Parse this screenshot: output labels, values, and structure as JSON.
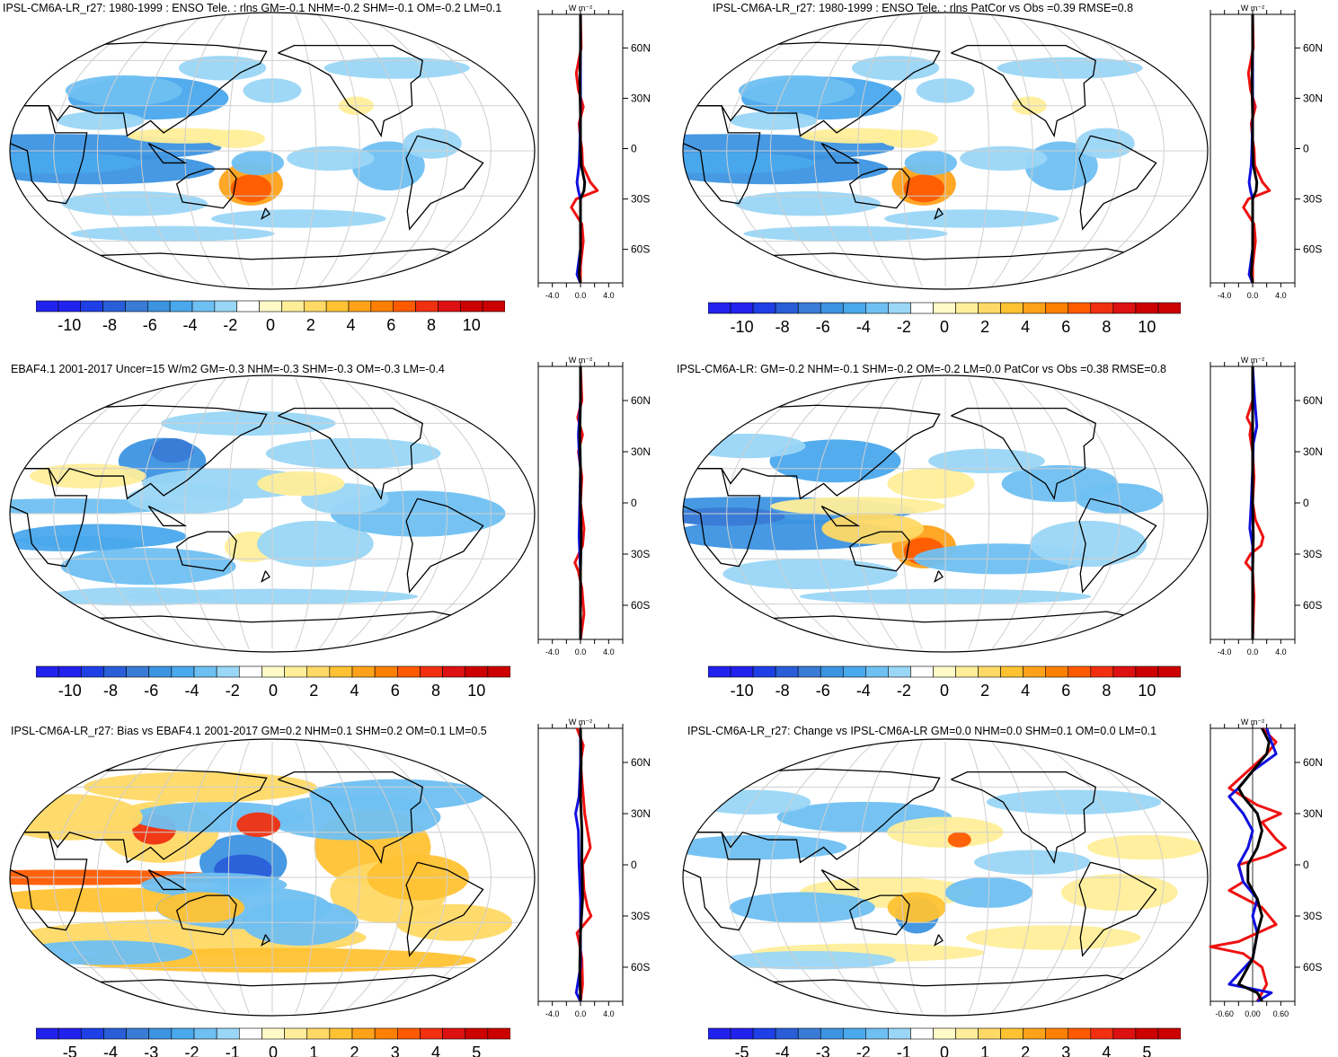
{
  "colors": {
    "ocean": "#ffffff",
    "grid": "#cfcfcf",
    "coast": "#000000",
    "blue_line": "#1010e0",
    "red_line": "#ee1111",
    "black_line": "#000000"
  },
  "colorbar_colors": [
    "#2222ee",
    "#1f3fe6",
    "#2a5ed8",
    "#3a7bd6",
    "#3c93e0",
    "#4aa8ec",
    "#6fc0f2",
    "#9ad6f6",
    "#ffffff",
    "#fffac8",
    "#ffee99",
    "#ffd966",
    "#ffc233",
    "#ffa21a",
    "#ff8000",
    "#ff5a00",
    "#f03010",
    "#dd1111",
    "#cc0000"
  ],
  "zonal_axis_unit": "W m⁻²",
  "lat_ticks": [
    "60N",
    "30N",
    "0",
    "30S",
    "60S"
  ],
  "panels": [
    {
      "title": "IPSL-CM6A-LR_r27: 1980-1999 : ENSO Tele. : rlns GM=-0.1 NHM=-0.2 SHM=-0.1 OM=-0.2 LM=0.1",
      "colorbar_labels": [
        "-10",
        "-8",
        "-6",
        "-4",
        "-2",
        "0",
        "2",
        "4",
        "6",
        "8",
        "10"
      ],
      "zonal_xticks": [
        "-4.0",
        "0.0",
        "4.0"
      ]
    },
    {
      "title": "IPSL-CM6A-LR_r27: 1980-1999 : ENSO Tele. : rlns PatCor vs Obs =0.39 RMSE=0.8",
      "colorbar_labels": [
        "-10",
        "-8",
        "-6",
        "-4",
        "-2",
        "0",
        "2",
        "4",
        "6",
        "8",
        "10"
      ],
      "zonal_xticks": [
        "-4.0",
        "0.0",
        "4.0"
      ]
    },
    {
      "title": "EBAF4.1 2001-2017 Uncer=15 W/m2 GM=-0.3 NHM=-0.3 SHM=-0.3 OM=-0.3 LM=-0.4",
      "colorbar_labels": [
        "-10",
        "-8",
        "-6",
        "-4",
        "-2",
        "0",
        "2",
        "4",
        "6",
        "8",
        "10"
      ],
      "zonal_xticks": [
        "-4.0",
        "0.0",
        "4.0"
      ]
    },
    {
      "title": "IPSL-CM6A-LR: GM=-0.2 NHM=-0.1 SHM=-0.2 OM=-0.2 LM=0.0 PatCor vs Obs =0.38 RMSE=0.8",
      "colorbar_labels": [
        "-10",
        "-8",
        "-6",
        "-4",
        "-2",
        "0",
        "2",
        "4",
        "6",
        "8",
        "10"
      ],
      "zonal_xticks": [
        "-4.0",
        "0.0",
        "4.0"
      ]
    },
    {
      "title": "IPSL-CM6A-LR_r27: Bias vs EBAF4.1 2001-2017 GM=0.2 NHM=0.1 SHM=0.2 OM=0.1 LM=0.5",
      "colorbar_labels": [
        "-5",
        "-4",
        "-3",
        "-2",
        "-1",
        "0",
        "1",
        "2",
        "3",
        "4",
        "5"
      ],
      "zonal_xticks": [
        "-4.0",
        "0.0",
        "4.0"
      ]
    },
    {
      "title": "IPSL-CM6A-LR_r27: Change vs IPSL-CM6A-LR GM=0.0 NHM=0.0 SHM=0.1 OM=0.0 LM=0.1",
      "colorbar_labels": [
        "-5",
        "-4",
        "-3",
        "-2",
        "-1",
        "0",
        "1",
        "2",
        "3",
        "4",
        "5"
      ],
      "zonal_xticks": [
        "-0.60",
        "0.00",
        "0.60"
      ]
    }
  ],
  "chart_data": [
    {
      "type": "heatmap",
      "title": "IPSL-CM6A-LR_r27: 1980-1999 : ENSO Tele. : rlns GM=-0.1 NHM=-0.2 SHM=-0.1 OM=-0.2 LM=0.1",
      "colorbar_range": [
        -10,
        10
      ]
    },
    {
      "type": "line",
      "title": "Zonal mean panel 1",
      "xlim": [
        -6,
        6
      ],
      "ylim": [
        -80,
        80
      ],
      "series": [
        {
          "name": "red",
          "lat": [
            80,
            60,
            45,
            35,
            25,
            15,
            5,
            0,
            -10,
            -20,
            -25,
            -30,
            -35,
            -45,
            -55,
            -70,
            -80
          ],
          "values": [
            0,
            0.1,
            -0.6,
            -0.3,
            0.4,
            -0.2,
            0,
            0.2,
            0.3,
            1.4,
            2.4,
            -0.6,
            -1.3,
            0.2,
            0.4,
            0,
            0
          ]
        },
        {
          "name": "blue",
          "lat": [
            80,
            60,
            40,
            20,
            0,
            -10,
            -20,
            -25,
            -30,
            -40,
            -60,
            -75,
            -80
          ],
          "values": [
            0,
            0,
            0,
            0,
            -0.1,
            -0.2,
            -0.5,
            -0.3,
            0,
            0,
            0,
            -0.5,
            0
          ]
        },
        {
          "name": "black",
          "lat": [
            80,
            60,
            40,
            20,
            0,
            -10,
            -20,
            -25,
            -30,
            -40,
            -60,
            -75,
            -80
          ],
          "values": [
            0,
            0,
            -0.1,
            0,
            0,
            0.1,
            0.6,
            0.5,
            0,
            0,
            0,
            -0.2,
            0
          ]
        }
      ]
    },
    {
      "type": "heatmap",
      "title": "IPSL-CM6A-LR_r27: 1980-1999 : ENSO Tele. : rlns PatCor vs Obs =0.39 RMSE=0.8",
      "colorbar_range": [
        -10,
        10
      ]
    },
    {
      "type": "line",
      "title": "Zonal mean panel 2",
      "xlim": [
        -6,
        6
      ],
      "ylim": [
        -80,
        80
      ],
      "series": [
        {
          "name": "red",
          "lat": [
            80,
            60,
            45,
            35,
            25,
            15,
            5,
            0,
            -10,
            -20,
            -25,
            -30,
            -35,
            -45,
            -55,
            -70,
            -80
          ],
          "values": [
            0,
            0.1,
            -0.6,
            -0.3,
            0.4,
            -0.2,
            0,
            0.2,
            0.3,
            1.4,
            2.4,
            -0.6,
            -1.3,
            0.2,
            0.4,
            0,
            0
          ]
        },
        {
          "name": "blue",
          "lat": [
            80,
            60,
            40,
            20,
            0,
            -10,
            -20,
            -25,
            -30,
            -40,
            -60,
            -75,
            -80
          ],
          "values": [
            0,
            0,
            0,
            0,
            -0.1,
            -0.2,
            -0.5,
            -0.3,
            0,
            0,
            0,
            -0.5,
            0
          ]
        },
        {
          "name": "black",
          "lat": [
            80,
            60,
            40,
            20,
            0,
            -10,
            -20,
            -25,
            -30,
            -40,
            -60,
            -75,
            -80
          ],
          "values": [
            0,
            0,
            -0.1,
            0,
            0,
            0.1,
            0.6,
            0.5,
            0,
            0,
            0,
            -0.2,
            0
          ]
        }
      ]
    },
    {
      "type": "heatmap",
      "title": "EBAF4.1 2001-2017 Uncer=15 W/m2 GM=-0.3 NHM=-0.3 SHM=-0.3 OM=-0.3 LM=-0.4",
      "colorbar_range": [
        -10,
        10
      ]
    },
    {
      "type": "line",
      "title": "Zonal mean panel 3",
      "xlim": [
        -6,
        6
      ],
      "ylim": [
        -80,
        80
      ],
      "series": [
        {
          "name": "red",
          "lat": [
            80,
            60,
            50,
            40,
            30,
            15,
            0,
            -15,
            -25,
            -35,
            -40,
            -50,
            -65,
            -80
          ],
          "values": [
            0,
            0.2,
            -0.4,
            0.3,
            -0.3,
            0.2,
            0,
            0.5,
            0.3,
            -0.8,
            -0.3,
            0.2,
            0.5,
            0
          ]
        },
        {
          "name": "blue",
          "lat": [
            80,
            60,
            40,
            30,
            20,
            0,
            -20,
            -40,
            -60,
            -80
          ],
          "values": [
            0,
            0,
            -0.3,
            -0.2,
            0,
            -0.1,
            -0.2,
            0,
            0,
            0
          ]
        },
        {
          "name": "black",
          "lat": [
            80,
            60,
            40,
            20,
            0,
            -20,
            -40,
            -60,
            -80
          ],
          "values": [
            0,
            0,
            -0.1,
            0,
            0,
            0.1,
            0,
            0,
            0
          ]
        }
      ]
    },
    {
      "type": "heatmap",
      "title": "IPSL-CM6A-LR: GM=-0.2 NHM=-0.1 SHM=-0.2 OM=-0.2 LM=0.0 PatCor vs Obs =0.38 RMSE=0.8",
      "colorbar_range": [
        -10,
        10
      ]
    },
    {
      "type": "line",
      "title": "Zonal mean panel 4",
      "xlim": [
        -6,
        6
      ],
      "ylim": [
        -80,
        80
      ],
      "series": [
        {
          "name": "red",
          "lat": [
            80,
            60,
            50,
            45,
            40,
            30,
            15,
            0,
            -10,
            -20,
            -25,
            -30,
            -35,
            -40,
            -55,
            -80
          ],
          "values": [
            0,
            0,
            -0.8,
            -0.2,
            -0.4,
            0,
            0.2,
            0,
            0.4,
            1.5,
            1.2,
            -0.3,
            -1.0,
            0,
            0.2,
            0
          ]
        },
        {
          "name": "blue",
          "lat": [
            80,
            60,
            45,
            35,
            20,
            0,
            -15,
            -25,
            -40,
            -80
          ],
          "values": [
            0,
            0.3,
            0.6,
            0.1,
            0,
            -0.2,
            -0.4,
            0,
            0,
            0
          ]
        },
        {
          "name": "black",
          "lat": [
            80,
            60,
            40,
            20,
            0,
            -20,
            -40,
            -80
          ],
          "values": [
            0,
            0,
            0,
            0,
            0,
            0.1,
            0,
            0
          ]
        }
      ]
    },
    {
      "type": "heatmap",
      "title": "IPSL-CM6A-LR_r27: Bias vs EBAF4.1 2001-2017 GM=0.2 NHM=0.1 SHM=0.2 OM=0.1 LM=0.5",
      "colorbar_range": [
        -5,
        5
      ]
    },
    {
      "type": "line",
      "title": "Zonal mean panel 5",
      "xlim": [
        -6,
        6
      ],
      "ylim": [
        -80,
        80
      ],
      "series": [
        {
          "name": "red",
          "lat": [
            80,
            70,
            60,
            45,
            30,
            20,
            10,
            0,
            -15,
            -25,
            -30,
            -40,
            -45,
            -55,
            -70,
            -80
          ],
          "values": [
            -0.5,
            0.4,
            0,
            0.3,
            0.6,
            1.0,
            1.4,
            0.3,
            0.5,
            1.0,
            1.5,
            -0.5,
            -0.2,
            0.2,
            0.3,
            0
          ]
        },
        {
          "name": "blue",
          "lat": [
            80,
            60,
            40,
            30,
            20,
            0,
            -20,
            -40,
            -60,
            -75,
            -80
          ],
          "values": [
            0,
            0,
            -0.2,
            -0.7,
            -0.3,
            -0.2,
            0,
            0,
            0,
            -0.6,
            0
          ]
        },
        {
          "name": "black",
          "lat": [
            80,
            60,
            40,
            20,
            0,
            -20,
            -40,
            -60,
            -80
          ],
          "values": [
            0,
            0.1,
            0,
            0.2,
            0.2,
            0.3,
            0,
            -0.1,
            0
          ]
        }
      ]
    },
    {
      "type": "heatmap",
      "title": "IPSL-CM6A-LR_r27: Change vs IPSL-CM6A-LR GM=0.0 NHM=0.0 SHM=0.1 OM=0.0 LM=0.1",
      "colorbar_range": [
        -5,
        5
      ]
    },
    {
      "type": "line",
      "title": "Zonal mean panel 6",
      "xlim": [
        -0.9,
        0.9
      ],
      "ylim": [
        -80,
        80
      ],
      "series": [
        {
          "name": "red",
          "lat": [
            80,
            72,
            65,
            55,
            45,
            35,
            30,
            25,
            15,
            10,
            5,
            0,
            -10,
            -15,
            -25,
            -35,
            -45,
            -48,
            -52,
            -60,
            -70,
            -80
          ],
          "values": [
            0.2,
            0.5,
            0.3,
            -0.1,
            -0.5,
            0.1,
            0.6,
            0.2,
            0.5,
            0.7,
            0.3,
            -0.3,
            -0.2,
            -0.5,
            0.2,
            0.5,
            -0.3,
            -0.9,
            -0.2,
            0.2,
            0.3,
            0.1
          ]
        },
        {
          "name": "blue",
          "lat": [
            80,
            72,
            65,
            55,
            45,
            40,
            30,
            20,
            10,
            0,
            -10,
            -20,
            -30,
            -40,
            -55,
            -70,
            -75,
            -80
          ],
          "values": [
            0.3,
            0.4,
            0.5,
            0.0,
            -0.3,
            -0.5,
            -0.2,
            0.0,
            -0.1,
            -0.3,
            -0.2,
            0.1,
            0.0,
            0.1,
            0.0,
            -0.5,
            0.4,
            0.1
          ]
        },
        {
          "name": "black",
          "lat": [
            80,
            72,
            65,
            55,
            45,
            40,
            30,
            20,
            10,
            0,
            -10,
            -20,
            -30,
            -40,
            -55,
            -70,
            -75,
            -80
          ],
          "values": [
            0.2,
            0.35,
            0.3,
            0.0,
            -0.3,
            -0.2,
            0.1,
            0.2,
            0.1,
            -0.1,
            -0.1,
            0.1,
            0.2,
            0.1,
            0.0,
            -0.3,
            0.1,
            0.2
          ]
        }
      ]
    }
  ]
}
